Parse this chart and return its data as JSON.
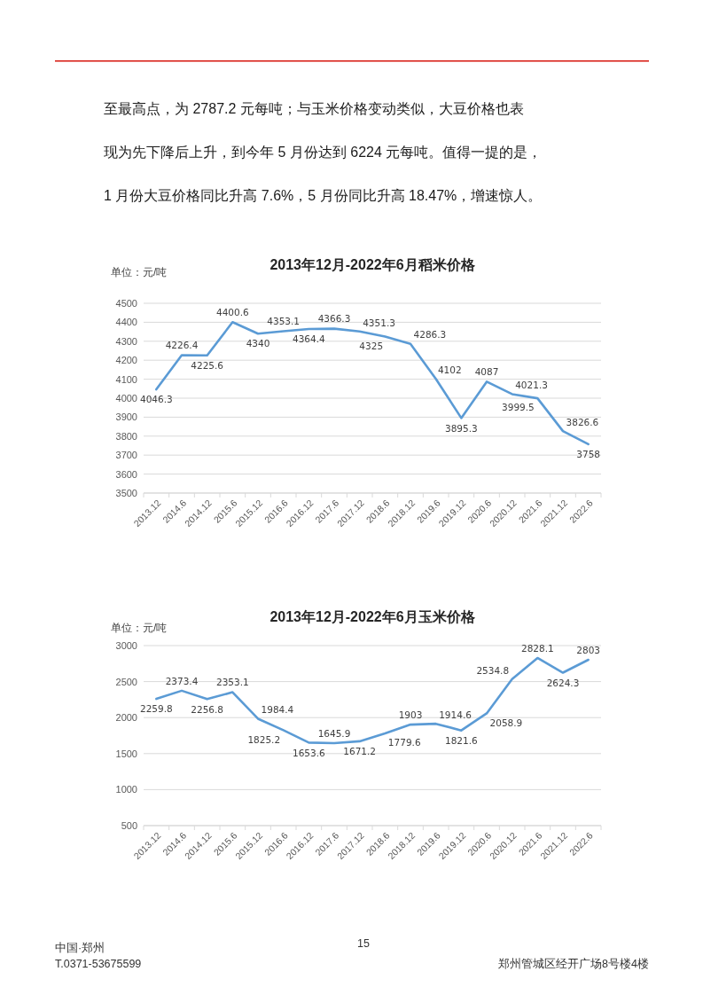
{
  "chart_data": [
    {
      "type": "other",
      "annotations": [
        "至最高点，为 2787.2 元每吨；与玉米价格变动类似，大豆价格也表",
        "现为先下降后上升，到今年 5 月份达到 6224 元每吨。值得一提的是，",
        "1 月份大豆价格同比升高 7.6%，5 月份同比升高 18.47%，增速惊人。"
      ]
    },
    {
      "type": "line",
      "title": "2013年12月-2022年6月稻米价格",
      "ylabel": "单位：元/吨",
      "categories": [
        "2013.12",
        "2014.6",
        "2014.12",
        "2015.6",
        "2015.12",
        "2016.6",
        "2016.12",
        "2017.6",
        "2017.12",
        "2018.6",
        "2018.12",
        "2019.6",
        "2019.12",
        "2020.6",
        "2020.12",
        "2021.6",
        "2021.12",
        "2022.6"
      ],
      "values": [
        4046.3,
        4226.4,
        4225.6,
        4400.6,
        4340,
        4353.1,
        4364.4,
        4366.3,
        4351.3,
        4325,
        4286.3,
        4102,
        3895.3,
        4087,
        4021.3,
        3999.5,
        3826.6,
        3758
      ],
      "color": "#5b9bd5",
      "ylim": [
        3500,
        4500
      ],
      "yticks": [
        3500,
        3600,
        3700,
        3800,
        3900,
        4000,
        4100,
        4200,
        4300,
        4400,
        4500
      ],
      "grid": "y",
      "data_labels": true
    },
    {
      "type": "line",
      "title": "2013年12月-2022年6月玉米价格",
      "ylabel": "单位：元/吨",
      "categories": [
        "2013.12",
        "2014.6",
        "2014.12",
        "2015.6",
        "2015.12",
        "2016.6",
        "2016.12",
        "2017.6",
        "2017.12",
        "2018.6",
        "2018.12",
        "2019.6",
        "2019.12",
        "2020.6",
        "2020.12",
        "2021.6",
        "2021.12",
        "2022.6"
      ],
      "values": [
        2259.8,
        2373.4,
        2256.8,
        2353.1,
        1984.4,
        1825.2,
        1653.6,
        1645.9,
        1671.2,
        1779.6,
        1903,
        1914.6,
        1821.6,
        2058.9,
        2534.8,
        2828.1,
        2624.3,
        2803
      ],
      "color": "#5b9bd5",
      "ylim": [
        500,
        3000
      ],
      "yticks": [
        500,
        1000,
        1500,
        2000,
        2500,
        3000
      ],
      "grid": "y",
      "data_labels": true
    },
    {
      "type": "other",
      "annotations": [
        "中国·郑州",
        "T.0371-53675599",
        "15",
        "郑州管城区经开广场8号楼4楼"
      ]
    }
  ]
}
